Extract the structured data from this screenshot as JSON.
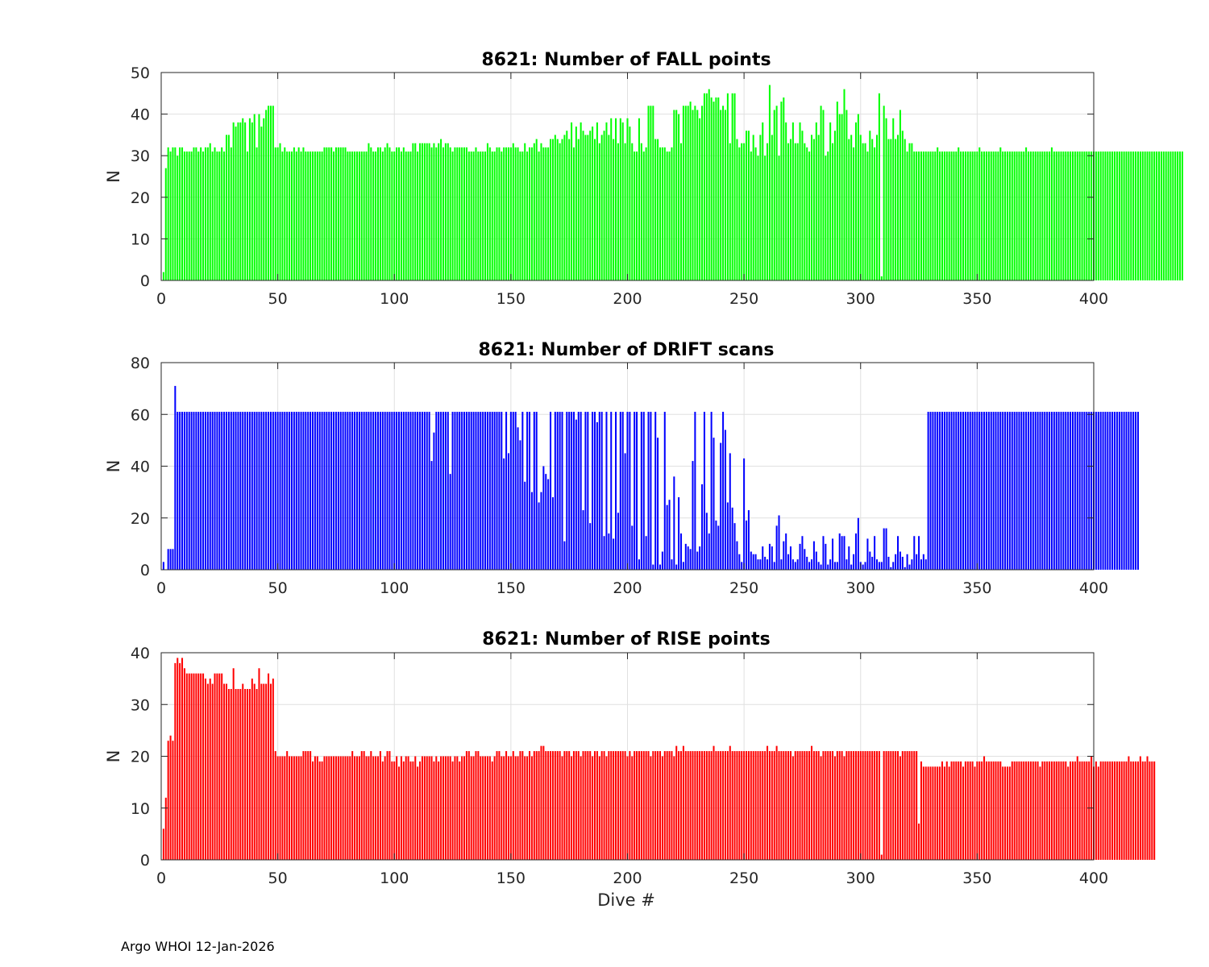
{
  "footer": "Argo WHOI 12-Jan-2026",
  "chart_data": [
    {
      "type": "bar",
      "title": "8621: Number of FALL points",
      "xlabel": "",
      "ylabel": "N",
      "xlim": [
        0,
        400
      ],
      "ylim": [
        0,
        50
      ],
      "xticks": [
        0,
        50,
        100,
        150,
        200,
        250,
        300,
        350,
        400
      ],
      "yticks": [
        0,
        10,
        20,
        30,
        40,
        50
      ],
      "grid": true,
      "color": "#00ff00",
      "x_start": 1,
      "values": [
        2,
        27,
        32,
        31,
        32,
        32,
        30,
        32,
        32,
        31,
        31,
        31,
        31,
        32,
        32,
        31,
        32,
        31,
        32,
        32,
        33,
        31,
        32,
        31,
        31,
        32,
        31,
        35,
        35,
        32,
        38,
        37,
        38,
        38,
        39,
        38,
        31,
        39,
        38,
        40,
        32,
        40,
        37,
        39,
        41,
        42,
        42,
        42,
        32,
        32,
        33,
        31,
        32,
        31,
        31,
        31,
        32,
        31,
        32,
        31,
        32,
        31,
        31,
        31,
        31,
        31,
        31,
        31,
        31,
        32,
        32,
        32,
        32,
        31,
        32,
        32,
        32,
        32,
        32,
        31,
        31,
        31,
        31,
        31,
        31,
        31,
        31,
        31,
        33,
        32,
        31,
        31,
        32,
        32,
        31,
        32,
        33,
        32,
        31,
        31,
        32,
        32,
        31,
        32,
        31,
        31,
        31,
        33,
        33,
        31,
        33,
        33,
        33,
        33,
        33,
        32,
        33,
        32,
        33,
        34,
        32,
        33,
        33,
        32,
        31,
        32,
        32,
        32,
        32,
        32,
        32,
        31,
        31,
        31,
        32,
        31,
        31,
        31,
        31,
        33,
        32,
        31,
        31,
        32,
        32,
        31,
        32,
        32,
        32,
        32,
        33,
        32,
        32,
        31,
        31,
        33,
        31,
        32,
        32,
        33,
        34,
        31,
        33,
        32,
        32,
        32,
        34,
        34,
        35,
        34,
        33,
        34,
        35,
        36,
        34,
        38,
        32,
        37,
        34,
        38,
        36,
        35,
        35,
        36,
        37,
        34,
        38,
        33,
        35,
        36,
        38,
        35,
        39,
        34,
        39,
        33,
        39,
        38,
        33,
        39,
        37,
        33,
        31,
        31,
        39,
        33,
        31,
        32,
        42,
        42,
        42,
        34,
        34,
        32,
        32,
        32,
        31,
        31,
        32,
        41,
        41,
        40,
        33,
        42,
        42,
        42,
        43,
        41,
        42,
        41,
        39,
        42,
        45,
        45,
        46,
        44,
        43,
        44,
        44,
        41,
        42,
        41,
        45,
        33,
        45,
        45,
        34,
        32,
        33,
        33,
        36,
        36,
        31,
        35,
        32,
        30,
        35,
        38,
        30,
        33,
        47,
        35,
        41,
        42,
        30,
        43,
        44,
        38,
        33,
        34,
        38,
        33,
        33,
        38,
        36,
        33,
        32,
        31,
        35,
        34,
        38,
        35,
        42,
        41,
        30,
        31,
        38,
        33,
        36,
        43,
        40,
        40,
        46,
        41,
        34,
        35,
        32,
        38,
        40,
        35,
        33,
        33,
        31,
        36,
        34,
        32,
        35,
        45,
        1,
        42,
        39,
        34,
        34,
        39,
        34,
        35,
        41,
        36,
        34,
        31,
        33,
        33,
        31,
        31,
        31,
        31,
        31,
        31,
        31,
        31,
        31,
        31,
        32,
        31,
        31,
        31,
        31,
        31,
        31,
        31,
        31,
        32,
        31,
        31,
        31,
        31,
        31,
        31,
        31,
        31,
        32,
        31,
        31,
        31,
        31,
        31,
        31,
        31,
        31,
        32,
        31,
        31,
        31,
        31,
        31,
        31,
        31,
        31,
        31,
        31,
        32,
        31,
        31,
        31,
        31,
        31,
        31,
        31,
        31,
        31,
        31,
        32,
        31,
        31,
        31,
        31,
        31,
        31,
        31,
        31,
        31,
        31,
        31,
        31,
        31,
        31,
        31,
        31,
        31,
        31,
        31,
        31,
        31,
        31,
        31,
        31,
        31,
        31,
        31,
        31,
        31,
        31,
        31,
        31,
        31,
        31,
        31,
        31,
        31,
        31,
        31,
        31,
        31,
        31,
        31,
        31,
        31,
        31,
        31,
        31,
        31,
        31,
        31,
        31,
        31,
        31,
        31,
        31
      ]
    },
    {
      "type": "bar",
      "title": "8621: Number of DRIFT scans",
      "xlabel": "",
      "ylabel": "N",
      "xlim": [
        0,
        400
      ],
      "ylim": [
        0,
        80
      ],
      "xticks": [
        0,
        50,
        100,
        150,
        200,
        250,
        300,
        350,
        400
      ],
      "yticks": [
        0,
        20,
        40,
        60,
        80
      ],
      "grid": true,
      "color": "#0000ff",
      "x_start": 1,
      "values": [
        3,
        0,
        8,
        8,
        8,
        71,
        61,
        61,
        61,
        61,
        61,
        61,
        61,
        61,
        61,
        61,
        61,
        61,
        61,
        61,
        61,
        61,
        61,
        61,
        61,
        61,
        61,
        61,
        61,
        61,
        61,
        61,
        61,
        61,
        61,
        61,
        61,
        61,
        61,
        61,
        61,
        61,
        61,
        61,
        61,
        61,
        61,
        61,
        61,
        61,
        61,
        61,
        61,
        61,
        61,
        61,
        61,
        61,
        61,
        61,
        61,
        61,
        61,
        61,
        61,
        61,
        61,
        61,
        61,
        61,
        61,
        61,
        61,
        61,
        61,
        61,
        61,
        61,
        61,
        61,
        61,
        61,
        61,
        61,
        61,
        61,
        61,
        61,
        61,
        61,
        61,
        61,
        61,
        61,
        61,
        61,
        61,
        61,
        61,
        61,
        61,
        61,
        61,
        61,
        61,
        61,
        61,
        61,
        61,
        61,
        61,
        61,
        61,
        61,
        61,
        42,
        53,
        61,
        61,
        61,
        61,
        61,
        61,
        37,
        61,
        61,
        61,
        61,
        61,
        61,
        61,
        61,
        61,
        61,
        61,
        61,
        61,
        61,
        61,
        61,
        61,
        61,
        61,
        61,
        61,
        61,
        43,
        61,
        45,
        61,
        61,
        61,
        55,
        50,
        61,
        34,
        61,
        61,
        30,
        61,
        61,
        26,
        30,
        40,
        37,
        35,
        61,
        28,
        61,
        61,
        61,
        61,
        11,
        61,
        61,
        61,
        61,
        58,
        61,
        61,
        23,
        61,
        61,
        18,
        61,
        61,
        57,
        61,
        61,
        13,
        61,
        14,
        61,
        12,
        61,
        22,
        61,
        61,
        45,
        61,
        61,
        17,
        61,
        61,
        4,
        61,
        61,
        13,
        61,
        61,
        2,
        61,
        51,
        2,
        7,
        61,
        25,
        27,
        4,
        36,
        2,
        28,
        14,
        3,
        10,
        9,
        8,
        42,
        61,
        7,
        9,
        33,
        61,
        22,
        14,
        61,
        51,
        19,
        17,
        49,
        61,
        54,
        26,
        45,
        24,
        18,
        11,
        6,
        3,
        43,
        19,
        23,
        7,
        6,
        6,
        4,
        4,
        9,
        5,
        4,
        10,
        9,
        3,
        17,
        21,
        4,
        11,
        14,
        6,
        9,
        4,
        3,
        4,
        10,
        13,
        8,
        5,
        3,
        4,
        11,
        7,
        3,
        2,
        13,
        10,
        2,
        4,
        12,
        3,
        3,
        14,
        13,
        13,
        4,
        9,
        2,
        6,
        14,
        20,
        3,
        2,
        3,
        12,
        7,
        5,
        13,
        4,
        3,
        3,
        16,
        16,
        5,
        1,
        3,
        6,
        13,
        7,
        5,
        1,
        6,
        2,
        4,
        13,
        6,
        13,
        4,
        6,
        4,
        61,
        61,
        61,
        61,
        61,
        61,
        61,
        61,
        61,
        61,
        61,
        61,
        61,
        61,
        61,
        61,
        61,
        61,
        61,
        61,
        61,
        61,
        61,
        61,
        61,
        61,
        61,
        61,
        61,
        61,
        61,
        61,
        61,
        61,
        61,
        61,
        61,
        61,
        61,
        61,
        61,
        61,
        61,
        61,
        61,
        61,
        61,
        61,
        61,
        61,
        61,
        61,
        61,
        61,
        61,
        61,
        61,
        61,
        61,
        61,
        61,
        61,
        61,
        61,
        61,
        61,
        61,
        61,
        61,
        61,
        61,
        61,
        61,
        61,
        61,
        61,
        61,
        61,
        61,
        61,
        61,
        61,
        61,
        61,
        61,
        61,
        61,
        61,
        61,
        61,
        61
      ]
    },
    {
      "type": "bar",
      "title": "8621: Number of RISE points",
      "xlabel": "Dive #",
      "ylabel": "N",
      "xlim": [
        0,
        400
      ],
      "ylim": [
        0,
        40
      ],
      "xticks": [
        0,
        50,
        100,
        150,
        200,
        250,
        300,
        350,
        400
      ],
      "yticks": [
        0,
        10,
        20,
        30,
        40
      ],
      "grid": true,
      "color": "#ff0000",
      "x_start": 1,
      "values": [
        6,
        12,
        23,
        24,
        23,
        38,
        39,
        38,
        39,
        37,
        36,
        36,
        36,
        36,
        36,
        36,
        36,
        36,
        35,
        34,
        35,
        34,
        36,
        36,
        36,
        36,
        34,
        34,
        33,
        33,
        37,
        33,
        33,
        33,
        34,
        33,
        33,
        33,
        35,
        34,
        33,
        37,
        34,
        34,
        34,
        36,
        34,
        35,
        21,
        20,
        20,
        20,
        20,
        21,
        20,
        20,
        20,
        20,
        20,
        20,
        21,
        21,
        21,
        21,
        19,
        20,
        20,
        19,
        19,
        20,
        20,
        20,
        20,
        20,
        20,
        20,
        20,
        20,
        20,
        20,
        20,
        21,
        20,
        20,
        20,
        21,
        21,
        20,
        20,
        21,
        20,
        20,
        20,
        21,
        19,
        20,
        21,
        21,
        19,
        19,
        20,
        18,
        20,
        19,
        20,
        20,
        19,
        19,
        20,
        18,
        19,
        20,
        20,
        20,
        20,
        20,
        19,
        20,
        19,
        20,
        20,
        20,
        20,
        20,
        19,
        20,
        20,
        19,
        20,
        20,
        21,
        21,
        20,
        20,
        21,
        21,
        20,
        20,
        20,
        20,
        20,
        19,
        20,
        21,
        21,
        20,
        20,
        21,
        20,
        20,
        21,
        20,
        20,
        21,
        21,
        20,
        20,
        21,
        20,
        21,
        21,
        21,
        22,
        22,
        21,
        21,
        21,
        21,
        21,
        21,
        21,
        20,
        21,
        21,
        21,
        20,
        21,
        21,
        21,
        20,
        21,
        21,
        21,
        21,
        20,
        21,
        21,
        20,
        21,
        21,
        20,
        21,
        21,
        21,
        21,
        21,
        21,
        21,
        21,
        20,
        21,
        20,
        21,
        21,
        21,
        21,
        21,
        21,
        21,
        20,
        21,
        21,
        21,
        21,
        20,
        21,
        21,
        21,
        21,
        20,
        22,
        21,
        21,
        22,
        21,
        21,
        21,
        21,
        21,
        21,
        21,
        21,
        21,
        21,
        21,
        21,
        22,
        21,
        21,
        21,
        21,
        21,
        21,
        22,
        21,
        21,
        21,
        21,
        21,
        21,
        21,
        21,
        21,
        21,
        21,
        21,
        21,
        21,
        21,
        22,
        21,
        21,
        21,
        22,
        21,
        21,
        21,
        21,
        21,
        21,
        20,
        21,
        21,
        21,
        21,
        21,
        21,
        21,
        22,
        21,
        21,
        21,
        20,
        21,
        21,
        21,
        21,
        21,
        20,
        21,
        21,
        21,
        20,
        21,
        21,
        21,
        21,
        21,
        21,
        21,
        21,
        21,
        21,
        21,
        21,
        21,
        21,
        21,
        1,
        21,
        21,
        21,
        21,
        21,
        21,
        21,
        20,
        21,
        21,
        21,
        21,
        21,
        21,
        21,
        7,
        19,
        18,
        18,
        18,
        18,
        18,
        18,
        18,
        18,
        19,
        18,
        19,
        18,
        19,
        19,
        19,
        19,
        19,
        18,
        19,
        19,
        19,
        19,
        18,
        19,
        19,
        19,
        20,
        19,
        19,
        19,
        19,
        19,
        19,
        19,
        18,
        18,
        18,
        18,
        19,
        19,
        19,
        19,
        19,
        19,
        19,
        19,
        19,
        19,
        19,
        19,
        18,
        19,
        19,
        19,
        19,
        19,
        19,
        19,
        19,
        19,
        19,
        19,
        18,
        19,
        19,
        19,
        20,
        19,
        19,
        19,
        19,
        19,
        20,
        18,
        19,
        18,
        19,
        19,
        19,
        19,
        19,
        19,
        19,
        19,
        19,
        19,
        19,
        19,
        20,
        19,
        19,
        19,
        19,
        20,
        19,
        19,
        20,
        19,
        19,
        19
      ]
    }
  ]
}
